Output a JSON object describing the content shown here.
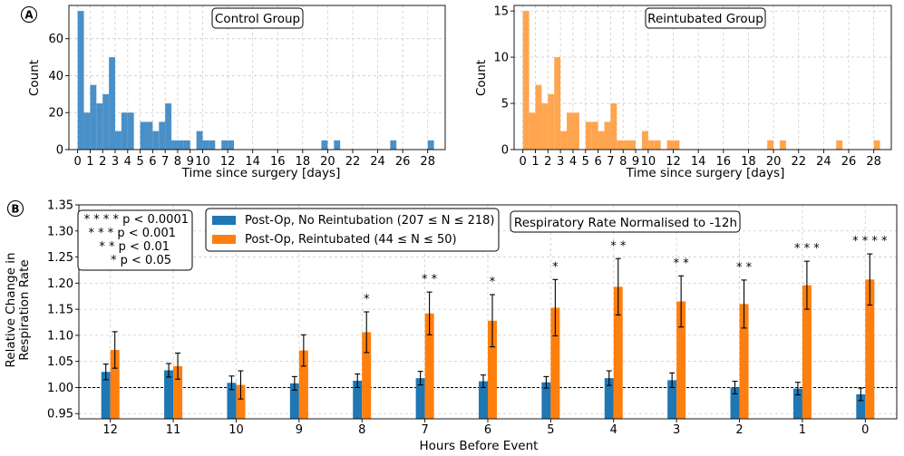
{
  "chart_data": [
    {
      "type": "bar",
      "panel": "A",
      "subtype": "histogram",
      "title": "Control Group",
      "xlabel": "Time since surgery [days]",
      "ylabel": "Count",
      "color": "#4a90c8",
      "xlim": [
        -0.7,
        29.4
      ],
      "ylim": [
        0,
        78
      ],
      "yticks": [
        0,
        20,
        40,
        60
      ],
      "xticks": [
        "0",
        "1",
        "2",
        "3",
        "4",
        "5",
        "6",
        "7",
        "8",
        "9",
        "10",
        "12",
        "14",
        "16",
        "18",
        "20",
        "22",
        "24",
        "26",
        "28"
      ],
      "xtick_values": [
        0,
        1,
        2,
        3,
        4,
        5,
        6,
        7,
        8,
        9,
        10,
        12,
        14,
        16,
        18,
        20,
        22,
        24,
        26,
        28
      ],
      "bin_width": 0.5,
      "bin_starts": [
        0,
        0.5,
        1,
        1.5,
        2,
        2.5,
        3,
        3.5,
        4,
        4.5,
        5,
        5.5,
        6,
        6.5,
        7,
        7.5,
        8,
        8.5,
        9,
        9.5,
        10,
        10.5,
        11,
        11.5,
        12,
        12.5,
        13,
        13.5,
        14,
        14.5,
        15,
        15.5,
        16,
        16.5,
        17,
        17.5,
        18,
        18.5,
        19,
        19.5,
        20,
        20.5,
        21,
        21.5,
        22,
        22.5,
        23,
        23.5,
        24,
        24.5,
        25,
        25.5,
        26,
        26.5,
        27,
        27.5,
        28,
        28.5
      ],
      "counts": [
        75,
        20,
        35,
        25,
        30,
        50,
        10,
        20,
        20,
        0,
        15,
        15,
        10,
        15,
        25,
        5,
        5,
        5,
        0,
        10,
        5,
        5,
        0,
        5,
        5,
        0,
        0,
        0,
        0,
        0,
        0,
        0,
        0,
        0,
        0,
        0,
        0,
        0,
        0,
        5,
        0,
        5,
        0,
        0,
        0,
        0,
        0,
        0,
        0,
        0,
        5,
        0,
        0,
        0,
        0,
        0,
        5,
        0
      ]
    },
    {
      "type": "bar",
      "panel": "A",
      "subtype": "histogram",
      "title": "Reintubated Group",
      "xlabel": "Time since surgery [days]",
      "ylabel": "Count",
      "color": "#ffa54f",
      "xlim": [
        -0.7,
        29.4
      ],
      "ylim": [
        0,
        15.6
      ],
      "yticks": [
        0,
        5,
        10,
        15
      ],
      "xticks": [
        "0",
        "1",
        "2",
        "3",
        "4",
        "5",
        "6",
        "7",
        "8",
        "9",
        "10",
        "12",
        "14",
        "16",
        "18",
        "20",
        "22",
        "24",
        "26",
        "28"
      ],
      "xtick_values": [
        0,
        1,
        2,
        3,
        4,
        5,
        6,
        7,
        8,
        9,
        10,
        12,
        14,
        16,
        18,
        20,
        22,
        24,
        26,
        28
      ],
      "bin_width": 0.5,
      "bin_starts": [
        0,
        0.5,
        1,
        1.5,
        2,
        2.5,
        3,
        3.5,
        4,
        4.5,
        5,
        5.5,
        6,
        6.5,
        7,
        7.5,
        8,
        8.5,
        9,
        9.5,
        10,
        10.5,
        11,
        11.5,
        12,
        12.5,
        13,
        13.5,
        14,
        14.5,
        15,
        15.5,
        16,
        16.5,
        17,
        17.5,
        18,
        18.5,
        19,
        19.5,
        20,
        20.5,
        21,
        21.5,
        22,
        22.5,
        23,
        23.5,
        24,
        24.5,
        25,
        25.5,
        26,
        26.5,
        27,
        27.5,
        28,
        28.5
      ],
      "counts": [
        15,
        4,
        7,
        5,
        6,
        10,
        2,
        4,
        4,
        0,
        3,
        3,
        2,
        3,
        5,
        1,
        1,
        1,
        0,
        2,
        1,
        1,
        0,
        1,
        1,
        0,
        0,
        0,
        0,
        0,
        0,
        0,
        0,
        0,
        0,
        0,
        0,
        0,
        0,
        1,
        0,
        1,
        0,
        0,
        0,
        0,
        0,
        0,
        0,
        0,
        1,
        0,
        0,
        0,
        0,
        0,
        1,
        0
      ]
    },
    {
      "type": "bar",
      "panel": "B",
      "subtype": "grouped bar with error bars",
      "title": "Respiratory Rate Normalised to -12h",
      "xlabel": "Hours Before Event",
      "ylabel": "Relative Change in Respiration Rate",
      "ylim": [
        0.94,
        1.35
      ],
      "yticks": [
        0.95,
        1.0,
        1.05,
        1.1,
        1.15,
        1.2,
        1.25,
        1.3,
        1.35
      ],
      "ytick_labels": [
        "0.95",
        "1.00",
        "1.05",
        "1.10",
        "1.15",
        "1.20",
        "1.25",
        "1.30",
        "1.35"
      ],
      "reference_line": 1.0,
      "categories": [
        "12",
        "11",
        "10",
        "9",
        "8",
        "7",
        "6",
        "5",
        "4",
        "3",
        "2",
        "1",
        "0"
      ],
      "series": [
        {
          "name": "Post-Op, No Reintubation (207 ≤ N ≤ 218)",
          "color": "#1f77b4",
          "values": [
            1.03,
            1.033,
            1.009,
            1.008,
            1.013,
            1.018,
            1.012,
            1.01,
            1.018,
            1.014,
            1.0,
            0.998,
            0.987
          ],
          "err": [
            0.015,
            0.013,
            0.013,
            0.013,
            0.013,
            0.013,
            0.012,
            0.011,
            0.014,
            0.014,
            0.012,
            0.012,
            0.012
          ]
        },
        {
          "name": "Post-Op, Reintubated (44 ≤ N ≤ 50)",
          "color": "#ff7f0e",
          "values": [
            1.072,
            1.041,
            1.005,
            1.071,
            1.106,
            1.142,
            1.128,
            1.153,
            1.193,
            1.165,
            1.16,
            1.196,
            1.207
          ],
          "err": [
            0.035,
            0.025,
            0.027,
            0.03,
            0.039,
            0.041,
            0.05,
            0.054,
            0.054,
            0.049,
            0.046,
            0.046,
            0.049
          ]
        }
      ],
      "significance": [
        "",
        "",
        "",
        "",
        "*",
        "* *",
        "*",
        "*",
        "* *",
        "* *",
        "* *",
        "* * *",
        "* * * *"
      ],
      "significance_legend": [
        "* * * * p < 0.0001",
        "* * * p < 0.001",
        "* * p < 0.01",
        "* p < 0.05"
      ]
    }
  ],
  "panel_labels": [
    "A",
    "B"
  ]
}
